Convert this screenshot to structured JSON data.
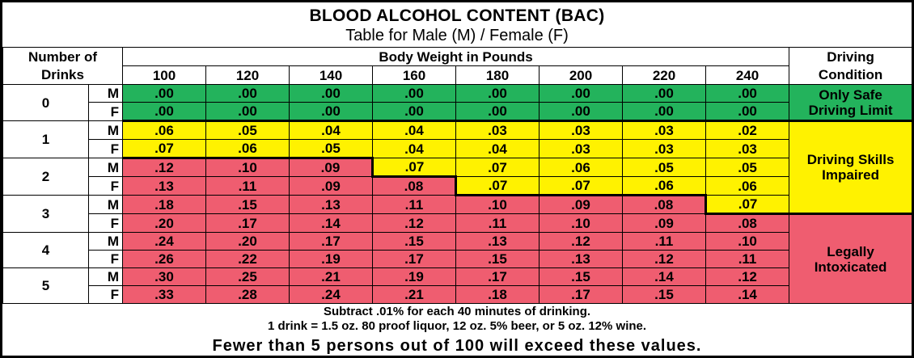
{
  "title": "BLOOD ALCOHOL CONTENT (BAC)",
  "subtitle": "Table for Male (M) / Female (F)",
  "header": {
    "number_of": "Number of",
    "drinks": "Drinks",
    "body_weight": "Body Weight in Pounds",
    "driving": "Driving",
    "condition": "Condition",
    "weights": [
      "100",
      "120",
      "140",
      "160",
      "180",
      "200",
      "220",
      "240"
    ]
  },
  "rows": [
    {
      "drinks": "0",
      "sex": "M",
      "values": [
        ".00",
        ".00",
        ".00",
        ".00",
        ".00",
        ".00",
        ".00",
        ".00"
      ]
    },
    {
      "drinks": "0",
      "sex": "F",
      "values": [
        ".00",
        ".00",
        ".00",
        ".00",
        ".00",
        ".00",
        ".00",
        ".00"
      ]
    },
    {
      "drinks": "1",
      "sex": "M",
      "values": [
        ".06",
        ".05",
        ".04",
        ".04",
        ".03",
        ".03",
        ".03",
        ".02"
      ]
    },
    {
      "drinks": "1",
      "sex": "F",
      "values": [
        ".07",
        ".06",
        ".05",
        ".04",
        ".04",
        ".03",
        ".03",
        ".03"
      ]
    },
    {
      "drinks": "2",
      "sex": "M",
      "values": [
        ".12",
        ".10",
        ".09",
        ".07",
        ".07",
        ".06",
        ".05",
        ".05"
      ]
    },
    {
      "drinks": "2",
      "sex": "F",
      "values": [
        ".13",
        ".11",
        ".09",
        ".08",
        ".07",
        ".07",
        ".06",
        ".06"
      ]
    },
    {
      "drinks": "3",
      "sex": "M",
      "values": [
        ".18",
        ".15",
        ".13",
        ".11",
        ".10",
        ".09",
        ".08",
        ".07"
      ]
    },
    {
      "drinks": "3",
      "sex": "F",
      "values": [
        ".20",
        ".17",
        ".14",
        ".12",
        ".11",
        ".10",
        ".09",
        ".08"
      ]
    },
    {
      "drinks": "4",
      "sex": "M",
      "values": [
        ".24",
        ".20",
        ".17",
        ".15",
        ".13",
        ".12",
        ".11",
        ".10"
      ]
    },
    {
      "drinks": "4",
      "sex": "F",
      "values": [
        ".26",
        ".22",
        ".19",
        ".17",
        ".15",
        ".13",
        ".12",
        ".11"
      ]
    },
    {
      "drinks": "5",
      "sex": "M",
      "values": [
        ".30",
        ".25",
        ".21",
        ".19",
        ".17",
        ".15",
        ".14",
        ".12"
      ]
    },
    {
      "drinks": "5",
      "sex": "F",
      "values": [
        ".33",
        ".28",
        ".24",
        ".21",
        ".18",
        ".17",
        ".15",
        ".14"
      ]
    }
  ],
  "conditions": {
    "safe_line1": "Only Safe",
    "safe_line2": "Driving Limit",
    "impaired_line1": "Driving Skills",
    "impaired_line2": "Impaired",
    "intox_line1": "Legally",
    "intox_line2": "Intoxicated"
  },
  "footer": {
    "line1": "Subtract .01% for each 40 minutes of drinking.",
    "line2": "1 drink = 1.5 oz. 80 proof liquor, 12 oz. 5% beer, or 5 oz. 12% wine.",
    "line3": "Fewer than 5 persons out of 100 will exceed these values."
  },
  "colors": {
    "safe": "#23b35c",
    "impaired": "#fff200",
    "intoxicated": "#ef5d70"
  }
}
